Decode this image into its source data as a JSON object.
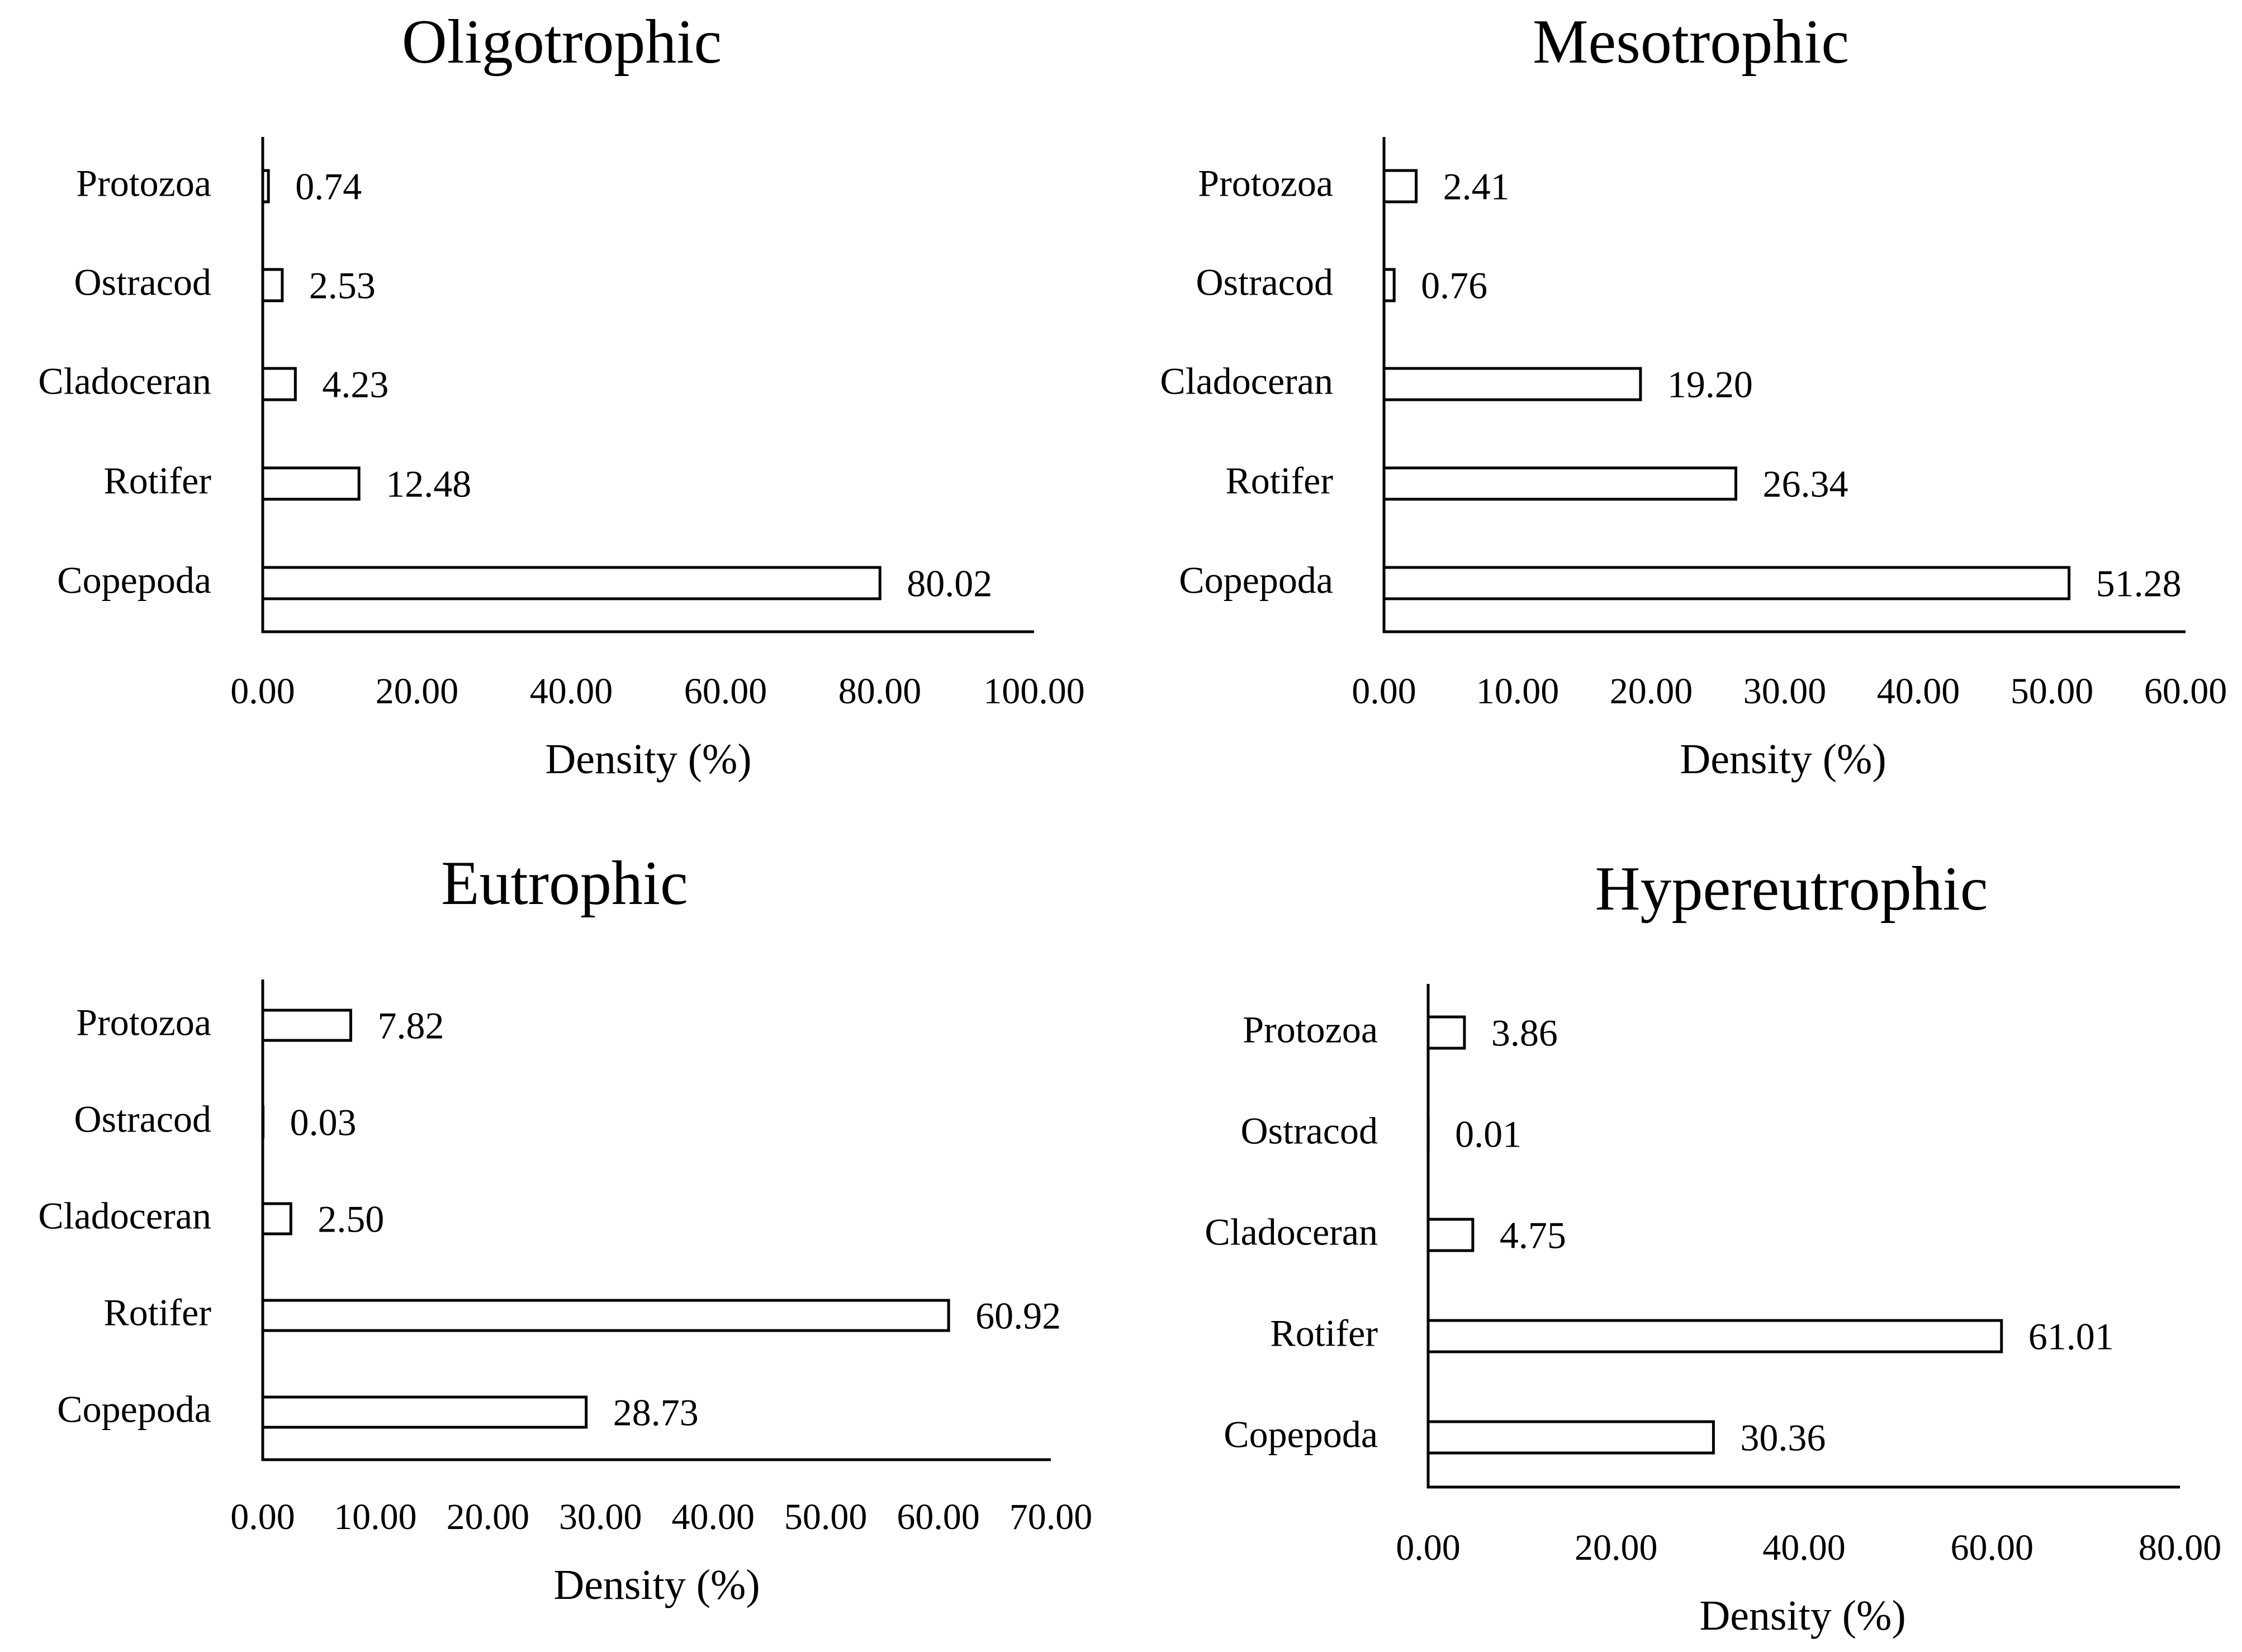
{
  "chart_data": [
    {
      "type": "bar",
      "orientation": "horizontal",
      "title": "Oligotrophic",
      "xlabel": "Density (%)",
      "ylabel": "",
      "categories": [
        "Protozoa",
        "Ostracod",
        "Cladoceran",
        "Rotifer",
        "Copepoda"
      ],
      "values": [
        0.74,
        2.53,
        4.23,
        12.48,
        80.02
      ],
      "value_labels": [
        "0.74",
        "2.53",
        "4.23",
        "12.48",
        "80.02"
      ],
      "xlim": [
        0,
        100
      ],
      "xticks": [
        "0.00",
        "20.00",
        "40.00",
        "60.00",
        "80.00",
        "100.00"
      ]
    },
    {
      "type": "bar",
      "orientation": "horizontal",
      "title": "Mesotrophic",
      "xlabel": "Density (%)",
      "ylabel": "",
      "categories": [
        "Protozoa",
        "Ostracod",
        "Cladoceran",
        "Rotifer",
        "Copepoda"
      ],
      "values": [
        2.41,
        0.76,
        19.2,
        26.34,
        51.28
      ],
      "value_labels": [
        "2.41",
        "0.76",
        "19.20",
        "26.34",
        "51.28"
      ],
      "xlim": [
        0,
        60
      ],
      "xticks": [
        "0.00",
        "10.00",
        "20.00",
        "30.00",
        "40.00",
        "50.00",
        "60.00"
      ]
    },
    {
      "type": "bar",
      "orientation": "horizontal",
      "title": "Eutrophic",
      "xlabel": "Density (%)",
      "ylabel": "",
      "categories": [
        "Protozoa",
        "Ostracod",
        "Cladoceran",
        "Rotifer",
        "Copepoda"
      ],
      "values": [
        7.82,
        0.03,
        2.5,
        60.92,
        28.73
      ],
      "value_labels": [
        "7.82",
        "0.03",
        "2.50",
        "60.92",
        "28.73"
      ],
      "xlim": [
        0,
        70
      ],
      "xticks": [
        "0.00",
        "10.00",
        "20.00",
        "30.00",
        "40.00",
        "50.00",
        "60.00",
        "70.00"
      ]
    },
    {
      "type": "bar",
      "orientation": "horizontal",
      "title": "Hypereutrophic",
      "xlabel": "Density (%)",
      "ylabel": "",
      "categories": [
        "Protozoa",
        "Ostracod",
        "Cladoceran",
        "Rotifer",
        "Copepoda"
      ],
      "values": [
        3.86,
        0.01,
        4.75,
        61.01,
        30.36
      ],
      "value_labels": [
        "3.86",
        "0.01",
        "4.75",
        "61.01",
        "30.36"
      ],
      "xlim": [
        0,
        80
      ],
      "xticks": [
        "0.00",
        "20.00",
        "40.00",
        "60.00",
        "80.00"
      ]
    }
  ]
}
